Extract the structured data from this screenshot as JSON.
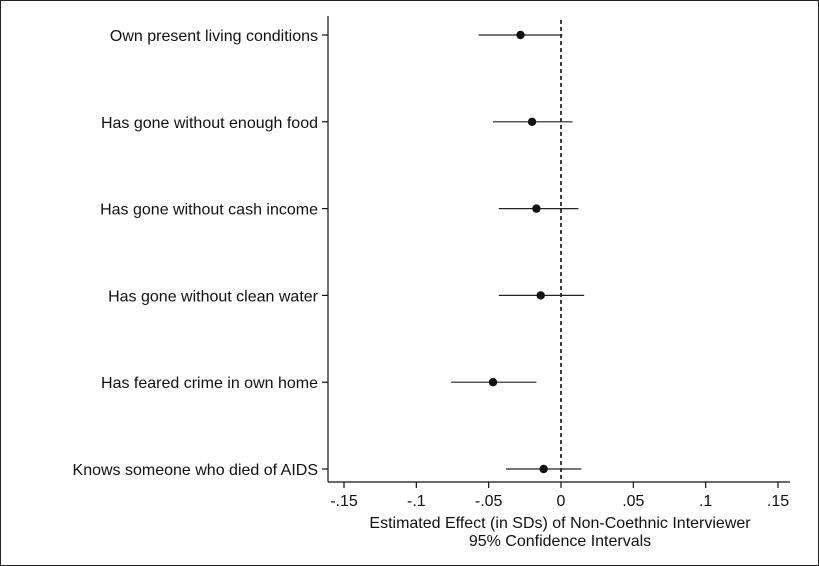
{
  "chart_data": {
    "type": "scatter",
    "orientation": "horizontal",
    "categories": [
      "Own present living conditions",
      "Has gone without enough food",
      "Has gone without cash income",
      "Has gone without clean water",
      "Has feared crime in own home",
      "Knows someone who died of AIDS"
    ],
    "estimates": [
      -0.028,
      -0.02,
      -0.017,
      -0.014,
      -0.047,
      -0.012
    ],
    "ci_low": [
      -0.057,
      -0.047,
      -0.043,
      -0.043,
      -0.076,
      -0.038
    ],
    "ci_high": [
      0.001,
      0.008,
      0.012,
      0.016,
      -0.017,
      0.014
    ],
    "xlabel": "Estimated Effect (in SDs) of Non-Coethnic Interviewer",
    "subtitle": "95% Confidence Intervals",
    "xlim": [
      -0.155,
      0.155
    ],
    "xticks": [
      -0.15,
      -0.1,
      -0.05,
      0,
      0.05,
      0.1,
      0.15
    ],
    "xtick_labels": [
      "-.15",
      "-.1",
      "-.05",
      "0",
      ".05",
      ".1",
      ".15"
    ],
    "reference_line": 0,
    "grid": false
  }
}
